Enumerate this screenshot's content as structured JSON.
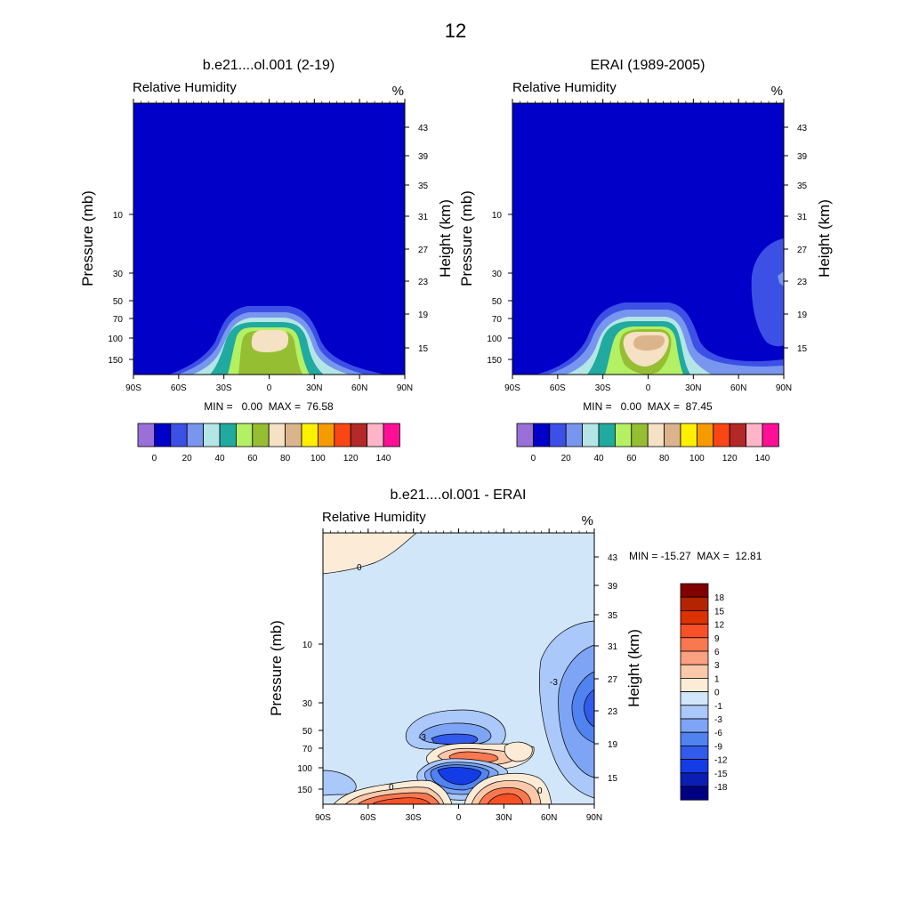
{
  "chart_data": [
    {
      "type": "heatmap",
      "title": "b.e21....ol.001 (2-19)",
      "subtitle_left": "Relative Humidity",
      "subtitle_right": "%",
      "ylabel_left": "Pressure (mb)",
      "ylabel_right": "Height (km)",
      "x_ticks": [
        "90S",
        "60S",
        "30S",
        "0",
        "30N",
        "60N",
        "90N"
      ],
      "pressure_ticks": [
        "10",
        "30",
        "50",
        "70",
        "100",
        "150"
      ],
      "height_ticks": [
        "43",
        "39",
        "35",
        "31",
        "27",
        "23",
        "19",
        "15"
      ],
      "stats": "MIN =   0.00  MAX =  76.58",
      "colorbar_labels": [
        "0",
        "20",
        "40",
        "60",
        "80",
        "100",
        "120",
        "140"
      ]
    },
    {
      "type": "heatmap",
      "title": "ERAI (1989-2005)",
      "subtitle_left": "Relative Humidity",
      "subtitle_right": "%",
      "ylabel_left": "Pressure (mb)",
      "ylabel_right": "Height (km)",
      "x_ticks": [
        "90S",
        "60S",
        "30S",
        "0",
        "30N",
        "60N",
        "90N"
      ],
      "pressure_ticks": [
        "10",
        "30",
        "50",
        "70",
        "100",
        "150"
      ],
      "height_ticks": [
        "43",
        "39",
        "35",
        "31",
        "27",
        "23",
        "19",
        "15"
      ],
      "stats": "MIN =   0.00  MAX =  87.45",
      "colorbar_labels": [
        "0",
        "20",
        "40",
        "60",
        "80",
        "100",
        "120",
        "140"
      ]
    },
    {
      "type": "heatmap",
      "title": "b.e21....ol.001 - ERAI",
      "subtitle_left": "Relative Humidity",
      "subtitle_right": "%",
      "ylabel_left": "Pressure (mb)",
      "ylabel_right": "Height (km)",
      "x_ticks": [
        "90S",
        "60S",
        "30S",
        "0",
        "30N",
        "60N",
        "90N"
      ],
      "pressure_ticks": [
        "10",
        "30",
        "50",
        "70",
        "100",
        "150"
      ],
      "height_ticks": [
        "43",
        "39",
        "35",
        "31",
        "27",
        "23",
        "19",
        "15"
      ],
      "stats": "MIN = -15.27  MAX =  12.81",
      "colorbar_labels": [
        "18",
        "15",
        "12",
        "9",
        "6",
        "3",
        "1",
        "0",
        "-1",
        "-3",
        "-6",
        "-9",
        "-12",
        "-15",
        "-18"
      ],
      "contour_labels": [
        "0",
        "0",
        "-3",
        "-3",
        "0"
      ]
    }
  ],
  "page": {
    "number": "12"
  },
  "colors": {
    "abs_scale": [
      "#9b6fd8",
      "#0000c8",
      "#3c50e6",
      "#7896ee",
      "#b4e6e6",
      "#20aaa0",
      "#b4f064",
      "#96be32",
      "#f5e1c3",
      "#dcb48c",
      "#fff000",
      "#f59b00",
      "#fa4614",
      "#b42828",
      "#ffb4c8",
      "#ff0f96"
    ],
    "diff_scale": [
      "#820000",
      "#b42400",
      "#dc3200",
      "#fa5028",
      "#fa7850",
      "#fca082",
      "#fcc8aa",
      "#fbebd7",
      "#d2e6fa",
      "#aac8fa",
      "#7ea5f5",
      "#5082f0",
      "#325aeb",
      "#143ce6",
      "#0a1eb4",
      "#000082"
    ]
  }
}
